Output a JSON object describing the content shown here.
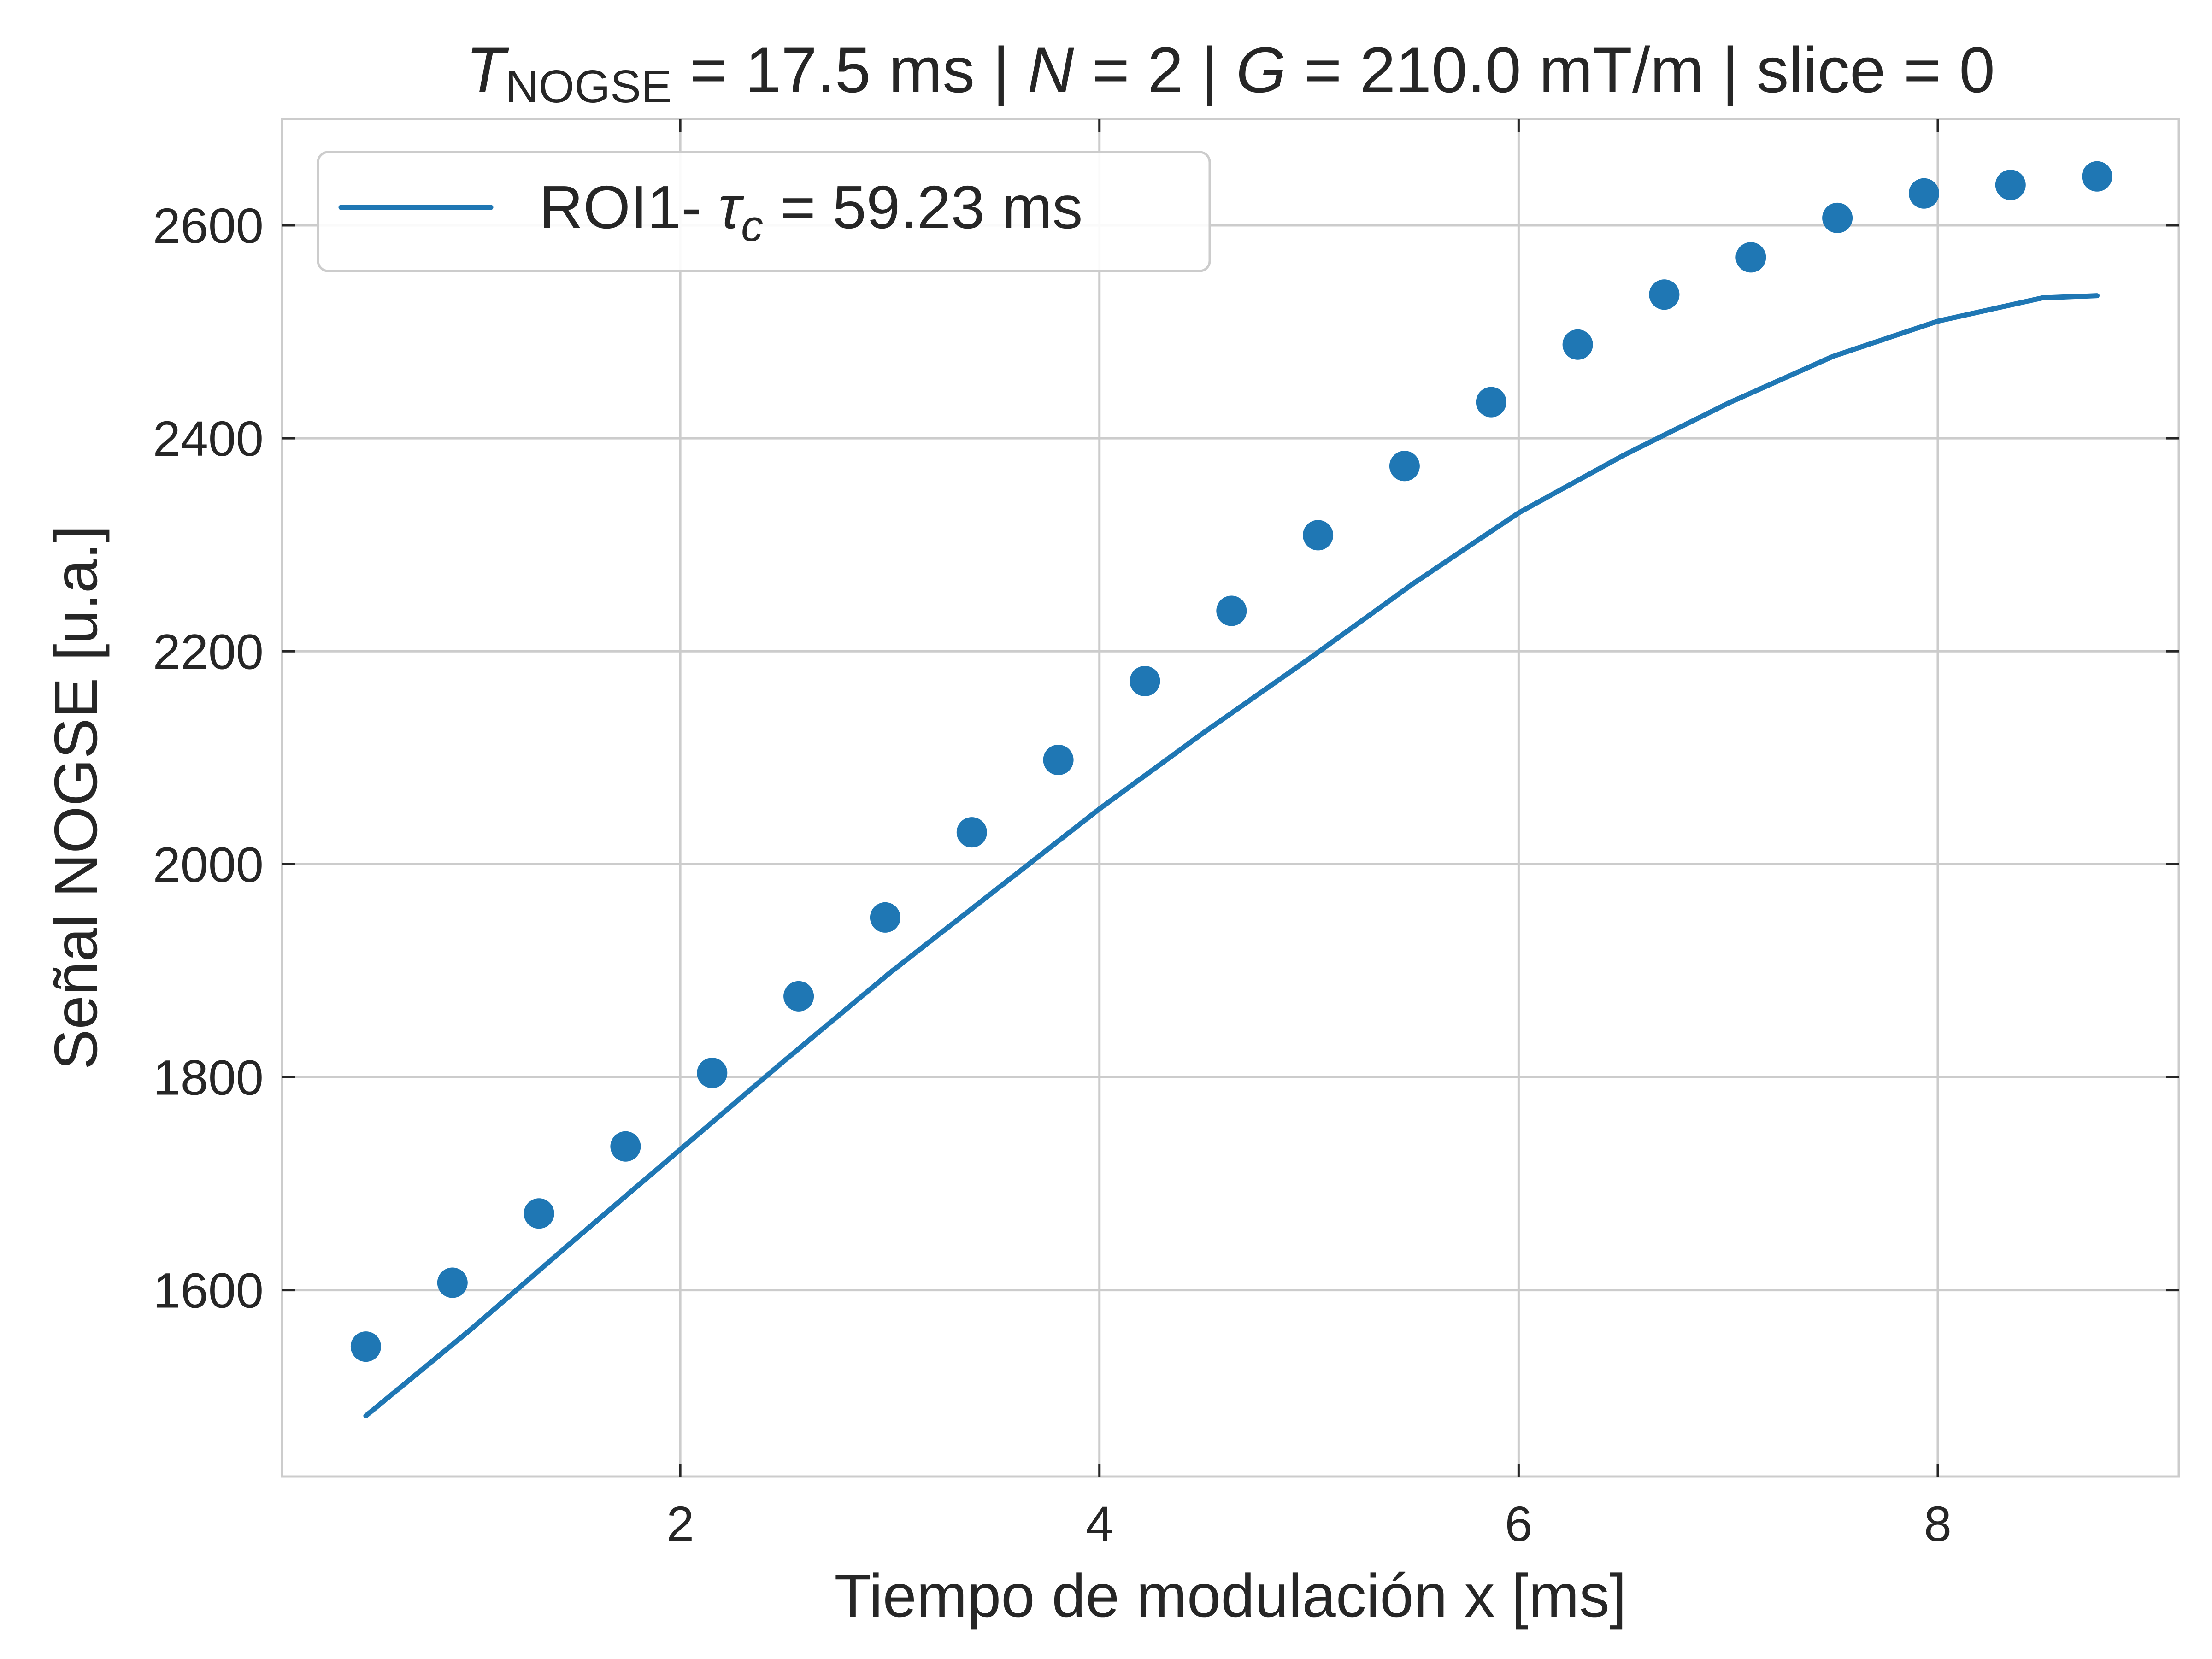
{
  "chart_data": {
    "type": "scatter",
    "title": {
      "t_symbol": "T",
      "t_subscript": "NOGSE",
      "part1": " = 17.5 ms | ",
      "n_symbol": "N",
      "part2": " = 2 | ",
      "g_symbol": "G",
      "part3": " = 210.0 mT/m | slice = 0"
    },
    "xlabel": "Tiempo de modulación x [ms]",
    "ylabel": "Señal NOGSE [u.a.]",
    "xlim": [
      0.1,
      9.15
    ],
    "ylim": [
      1425,
      2700
    ],
    "xticks": [
      2,
      4,
      6,
      8
    ],
    "yticks": [
      1600,
      1800,
      2000,
      2200,
      2400,
      2600
    ],
    "grid": true,
    "legend": {
      "placement": "top-left",
      "entries": [
        {
          "prefix": "ROI1- ",
          "symbol": "τ",
          "subscript": "c",
          "suffix": " = 59.23 ms"
        }
      ]
    },
    "colors": {
      "series": "#1f77b4"
    },
    "series": [
      {
        "kind": "scatter",
        "x": [
          0.5,
          0.913,
          1.326,
          1.739,
          2.152,
          2.565,
          2.978,
          3.391,
          3.804,
          4.217,
          4.63,
          5.043,
          5.456,
          5.869,
          6.282,
          6.695,
          7.108,
          7.521,
          7.934,
          8.347,
          8.76
        ],
        "y": [
          1547,
          1607,
          1672,
          1735,
          1804,
          1876,
          1950,
          2030,
          2098,
          2172,
          2238,
          2309,
          2374,
          2434,
          2488,
          2535,
          2570,
          2607,
          2630,
          2638,
          2646
        ]
      },
      {
        "kind": "line",
        "x": [
          0.5,
          1.0,
          1.5,
          2.0,
          2.5,
          3.0,
          3.5,
          4.0,
          4.5,
          5.0,
          5.5,
          6.0,
          6.5,
          7.0,
          7.5,
          8.0,
          8.5,
          8.76
        ],
        "y": [
          1482,
          1563,
          1648,
          1732,
          1816,
          1898,
          1975,
          2052,
          2124,
          2193,
          2264,
          2330,
          2384,
          2433,
          2477,
          2510,
          2532,
          2534
        ]
      }
    ]
  }
}
